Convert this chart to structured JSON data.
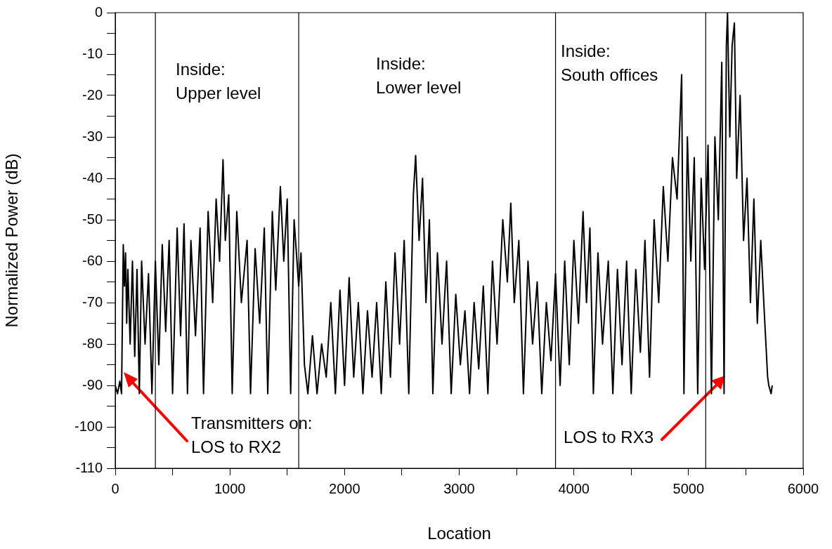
{
  "chart_data": {
    "type": "line",
    "xlabel": "Location",
    "ylabel": "Normalized Power (dB)",
    "xlim": [
      0,
      6000
    ],
    "ylim": [
      -110,
      0
    ],
    "xticks": [
      0,
      {
        "value": 500,
        "label": null
      },
      1000,
      {
        "value": 1500,
        "label": null
      },
      2000,
      {
        "value": 2500,
        "label": null
      },
      3000,
      {
        "value": 3500,
        "label": null
      },
      4000,
      {
        "value": 4500,
        "label": null
      },
      5000,
      {
        "value": 5500,
        "label": null
      },
      6000
    ],
    "yticks": [
      -110,
      {
        "value": -105,
        "label": null
      },
      -100,
      {
        "value": -95,
        "label": null
      },
      -90,
      {
        "value": -85,
        "label": null
      },
      -80,
      {
        "value": -75,
        "label": null
      },
      -70,
      {
        "value": -65,
        "label": null
      },
      -60,
      {
        "value": -55,
        "label": null
      },
      -50,
      {
        "value": -45,
        "label": null
      },
      -40,
      {
        "value": -35,
        "label": null
      },
      -30,
      {
        "value": -25,
        "label": null
      },
      -20,
      {
        "value": -15,
        "label": null
      },
      -10,
      {
        "value": -5,
        "label": null
      },
      0
    ],
    "grid": false,
    "legend": false,
    "marker": "none",
    "line_style": "solid",
    "series": [
      {
        "color": "#000000",
        "x": [
          0,
          20,
          40,
          55,
          70,
          80,
          90,
          100,
          110,
          130,
          150,
          170,
          190,
          210,
          230,
          260,
          290,
          320,
          350,
          380,
          410,
          440,
          470,
          500,
          540,
          570,
          600,
          630,
          660,
          700,
          740,
          770,
          810,
          850,
          880,
          910,
          940,
          960,
          990,
          1020,
          1060,
          1100,
          1150,
          1180,
          1220,
          1260,
          1300,
          1330,
          1370,
          1400,
          1440,
          1470,
          1500,
          1530,
          1560,
          1600,
          1620,
          1650,
          1680,
          1720,
          1760,
          1800,
          1840,
          1880,
          1920,
          1960,
          2000,
          2040,
          2080,
          2120,
          2160,
          2200,
          2240,
          2280,
          2320,
          2360,
          2400,
          2440,
          2480,
          2520,
          2560,
          2600,
          2620,
          2650,
          2680,
          2710,
          2740,
          2770,
          2810,
          2850,
          2890,
          2930,
          2970,
          3010,
          3050,
          3090,
          3130,
          3170,
          3210,
          3250,
          3290,
          3330,
          3380,
          3420,
          3450,
          3480,
          3520,
          3560,
          3600,
          3640,
          3680,
          3720,
          3760,
          3800,
          3840,
          3880,
          3920,
          3960,
          4000,
          4040,
          4080,
          4110,
          4140,
          4170,
          4210,
          4250,
          4300,
          4340,
          4380,
          4420,
          4460,
          4500,
          4540,
          4580,
          4620,
          4660,
          4700,
          4740,
          4780,
          4820,
          4860,
          4900,
          4940,
          4960,
          4990,
          5020,
          5050,
          5080,
          5110,
          5140,
          5170,
          5200,
          5230,
          5260,
          5290,
          5310,
          5330,
          5340,
          5360,
          5380,
          5400,
          5420,
          5450,
          5480,
          5510,
          5540,
          5570,
          5600,
          5630,
          5660,
          5690,
          5700,
          5720,
          5730
        ],
        "values": [
          -90,
          -92,
          -89,
          -92,
          -56,
          -66,
          -58,
          -75,
          -62,
          -80,
          -60,
          -83,
          -62,
          -92,
          -60,
          -80,
          -63,
          -92,
          -60,
          -85,
          -56,
          -77,
          -55,
          -92,
          -52,
          -78,
          -51,
          -92,
          -55,
          -78,
          -52,
          -92,
          -48,
          -70,
          -45,
          -60,
          -35.5,
          -55,
          -44,
          -92,
          -48,
          -70,
          -55,
          -92,
          -57,
          -75,
          -52,
          -92,
          -48,
          -67,
          -42,
          -60,
          -45,
          -92,
          -50,
          -66,
          -58,
          -85,
          -92,
          -78,
          -92,
          -80,
          -88,
          -70,
          -92,
          -67,
          -90,
          -64,
          -88,
          -70,
          -92,
          -72,
          -88,
          -70,
          -92,
          -65,
          -88,
          -58,
          -80,
          -55,
          -92,
          -44,
          -34.5,
          -55,
          -40,
          -70,
          -50,
          -92,
          -58,
          -80,
          -60,
          -92,
          -68,
          -85,
          -72,
          -92,
          -70,
          -86,
          -66,
          -92,
          -60,
          -80,
          -50,
          -65,
          -46,
          -70,
          -55,
          -92,
          -60,
          -80,
          -65,
          -92,
          -70,
          -84,
          -63,
          -90,
          -60,
          -85,
          -55,
          -75,
          -48,
          -70,
          -52,
          -92,
          -58,
          -80,
          -60,
          -92,
          -62,
          -85,
          -60,
          -92,
          -62,
          -82,
          -55,
          -88,
          -50,
          -70,
          -42,
          -60,
          -35,
          -45,
          -15,
          -92,
          -30,
          -60,
          -35,
          -92,
          -40,
          -62,
          -32,
          -92,
          -30,
          -50,
          -12,
          -92,
          -8,
          0,
          -30,
          -8,
          -2.5,
          -40,
          -20,
          -55,
          -40,
          -70,
          -45,
          -75,
          -55,
          -72,
          -88,
          -90,
          -92,
          -90
        ]
      }
    ],
    "ref_lines": [
      {
        "axis": "x",
        "value": 350
      },
      {
        "axis": "x",
        "value": 1600
      },
      {
        "axis": "x",
        "value": 3840
      },
      {
        "axis": "x",
        "value": 5150
      }
    ],
    "annotations": [
      "Inside:\nUpper level",
      "Inside:\nLower level",
      "Inside:\nSouth offices",
      "Transmitters on:\nLOS to RX2",
      "LOS to RX3"
    ]
  }
}
